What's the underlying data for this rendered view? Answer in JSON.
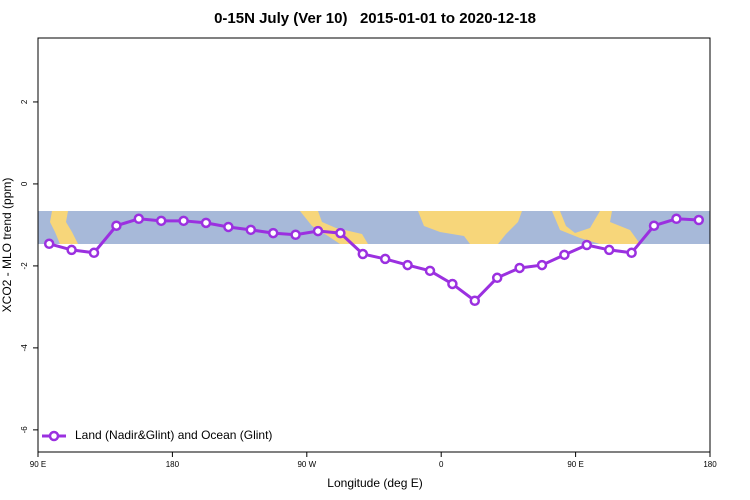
{
  "chart_data": {
    "type": "line",
    "title": "0-15N July (Ver 10)   2015-01-01 to 2020-12-18",
    "x_label": "Longitude (deg E)",
    "y_label": "XCO2 - MLO trend (ppm)",
    "x": [
      97.5,
      112.5,
      127.5,
      142.5,
      157.5,
      172.5,
      187.5,
      202.5,
      217.5,
      232.5,
      247.5,
      262.5,
      277.5,
      292.5,
      307.5,
      322.5,
      337.5,
      352.5,
      367.5,
      382.5,
      397.5,
      412.5,
      427.5,
      442.5,
      457.5,
      472.5,
      487.5,
      502.5,
      517.5,
      532.5
    ],
    "series": [
      {
        "name": "Land (Nadir&Glint) and Ocean (Glint)",
        "color": "#9b30e0",
        "values": [
          -1.46,
          -1.61,
          -1.68,
          -1.02,
          -0.85,
          -0.9,
          -0.9,
          -0.95,
          -1.05,
          -1.12,
          -1.2,
          -1.24,
          -1.15,
          -1.2,
          -1.71,
          -1.83,
          -1.98,
          -2.12,
          -2.44,
          -2.85,
          -2.29,
          -2.05,
          -1.98,
          -1.73,
          -1.49,
          -1.61,
          -1.68,
          -1.02,
          -0.85,
          -0.88
        ]
      }
    ],
    "xlim": [
      90,
      540
    ],
    "xticks": [
      {
        "value": 90,
        "label": "90 E"
      },
      {
        "value": 180,
        "label": "180"
      },
      {
        "value": 270,
        "label": "90 W"
      },
      {
        "value": 360,
        "label": "0"
      },
      {
        "value": 450,
        "label": "90 E"
      },
      {
        "value": 540,
        "label": "180"
      }
    ],
    "ylim": [
      -6.54,
      3.56
    ],
    "yticks": [
      -6,
      -4,
      -2,
      0,
      2
    ],
    "legend": "bottom-left"
  }
}
